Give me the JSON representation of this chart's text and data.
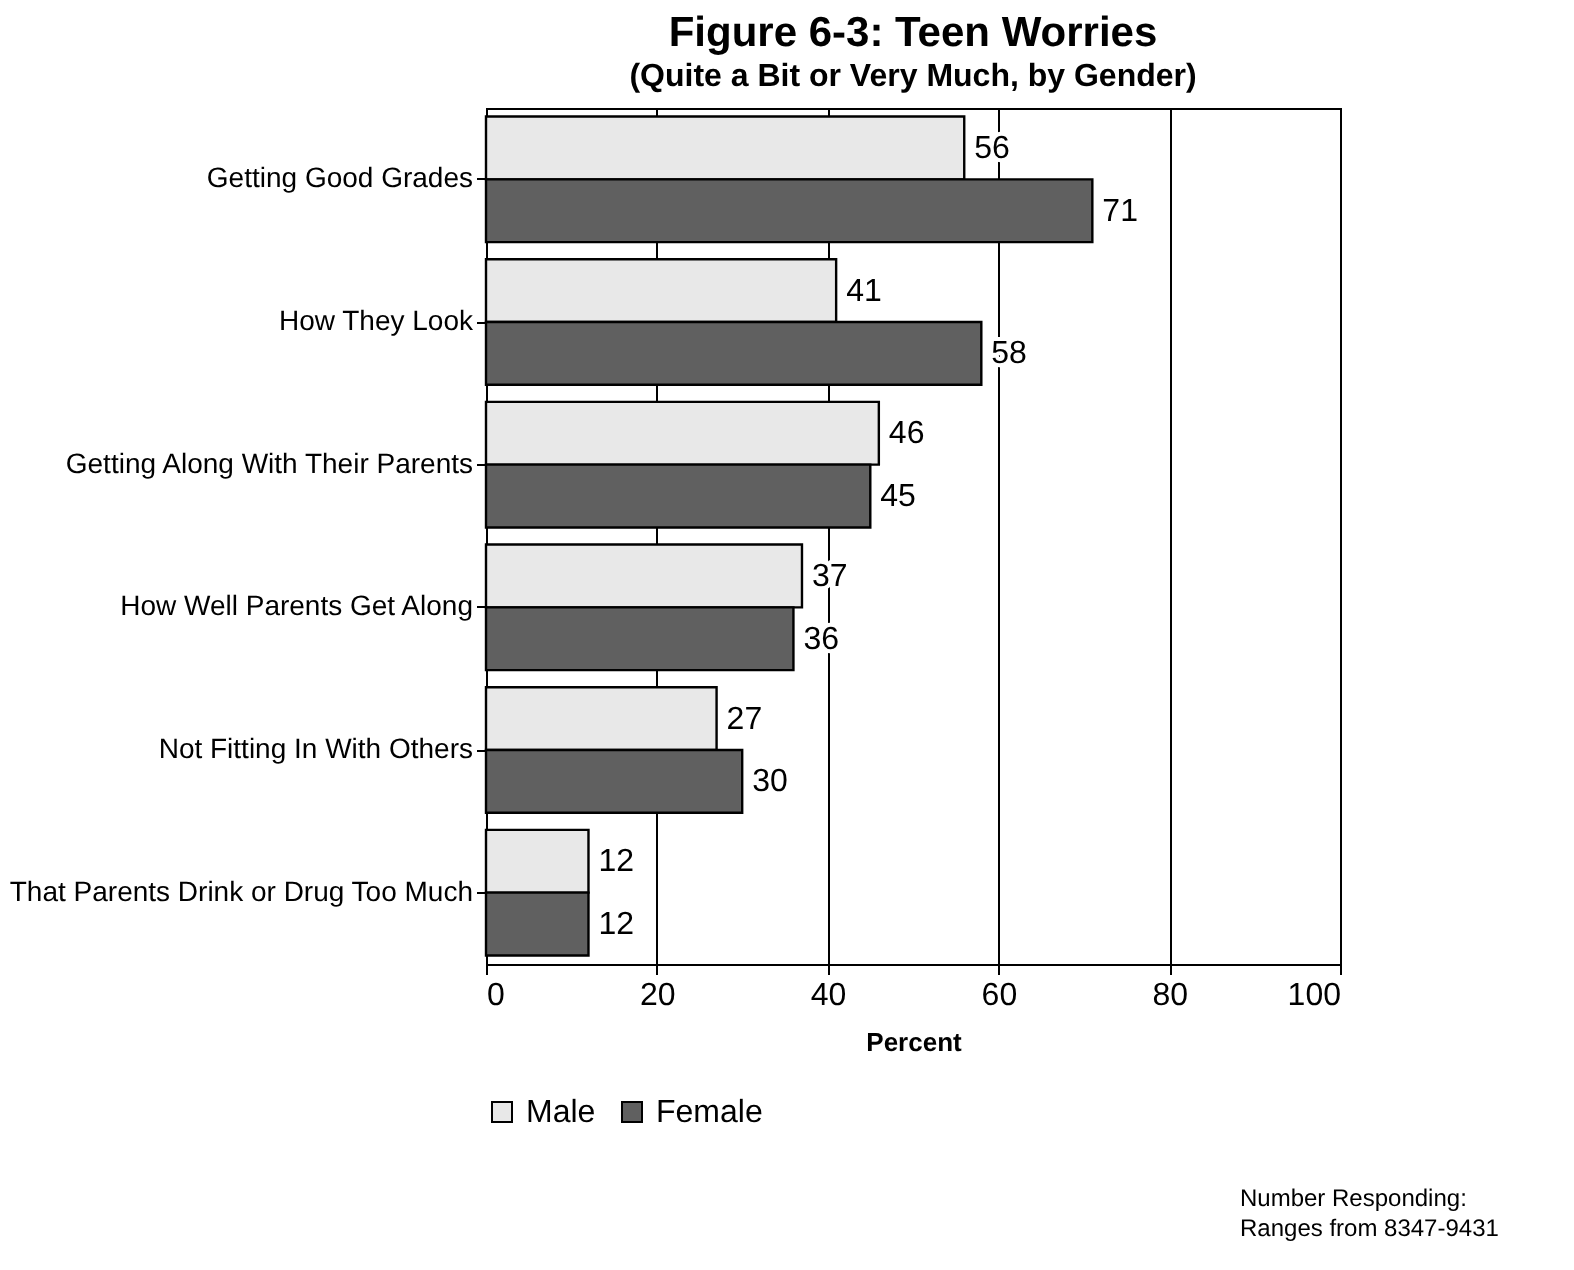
{
  "chart_data": {
    "type": "bar",
    "orientation": "horizontal",
    "title": "Figure 6-3: Teen Worries",
    "subtitle": "(Quite a Bit or Very Much, by Gender)",
    "xlabel": "Percent",
    "categories": [
      "Getting Good Grades",
      "How They Look",
      "Getting Along With Their Parents",
      "How Well Parents Get Along",
      "Not Fitting In With Others",
      "That Parents Drink or Drug Too Much"
    ],
    "series": [
      {
        "name": "Male",
        "color": "#e8e8e8",
        "values": [
          56,
          41,
          46,
          37,
          27,
          12
        ]
      },
      {
        "name": "Female",
        "color": "#606060",
        "values": [
          71,
          58,
          45,
          36,
          30,
          12
        ]
      }
    ],
    "xlim": [
      0,
      100
    ],
    "xticks": [
      0,
      20,
      40,
      60,
      80,
      100
    ],
    "grid": "x",
    "legend": "bottom",
    "data_labels": true,
    "annotations": [
      "Number Responding: Ranges from 8347-9431"
    ]
  }
}
